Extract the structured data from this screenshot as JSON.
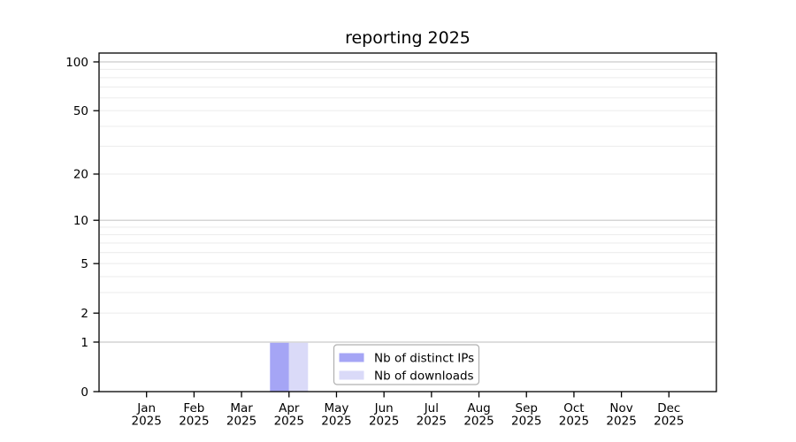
{
  "figure": {
    "background": "#ffffff"
  },
  "chart_data": {
    "type": "bar",
    "title": "reporting 2025",
    "categories": [
      "Jan",
      "Feb",
      "Mar",
      "Apr",
      "May",
      "Jun",
      "Jul",
      "Aug",
      "Sep",
      "Oct",
      "Nov",
      "Dec"
    ],
    "year_label": "2025",
    "series": [
      {
        "name": "Nb of distinct IPs",
        "color": "#a5a5f5",
        "values": [
          0,
          0,
          0,
          1,
          0,
          0,
          0,
          0,
          0,
          0,
          0,
          0
        ]
      },
      {
        "name": "Nb of downloads",
        "color": "#dadaf8",
        "values": [
          0,
          0,
          0,
          1,
          0,
          0,
          0,
          0,
          0,
          0,
          0,
          0
        ]
      }
    ],
    "yscale": "log10(1+v)",
    "ylim": [
      0,
      113
    ],
    "yticks": [
      0,
      1,
      2,
      5,
      10,
      20,
      50,
      100
    ],
    "major_gridlines": [
      1,
      10,
      100
    ],
    "minor_gridlines": [
      2,
      3,
      4,
      5,
      6,
      7,
      8,
      9,
      20,
      30,
      40,
      50,
      60,
      70,
      80,
      90
    ],
    "grid": true,
    "legend_position": "inside lower center",
    "colors": {
      "bar_distinct_ips": "#a5a5f5",
      "bar_downloads": "#dadaf8",
      "major_grid": "#c9c9c9",
      "minor_grid": "#ededed",
      "axis": "#000000",
      "legend_border": "#b0b0b0",
      "text": "#000000"
    }
  }
}
